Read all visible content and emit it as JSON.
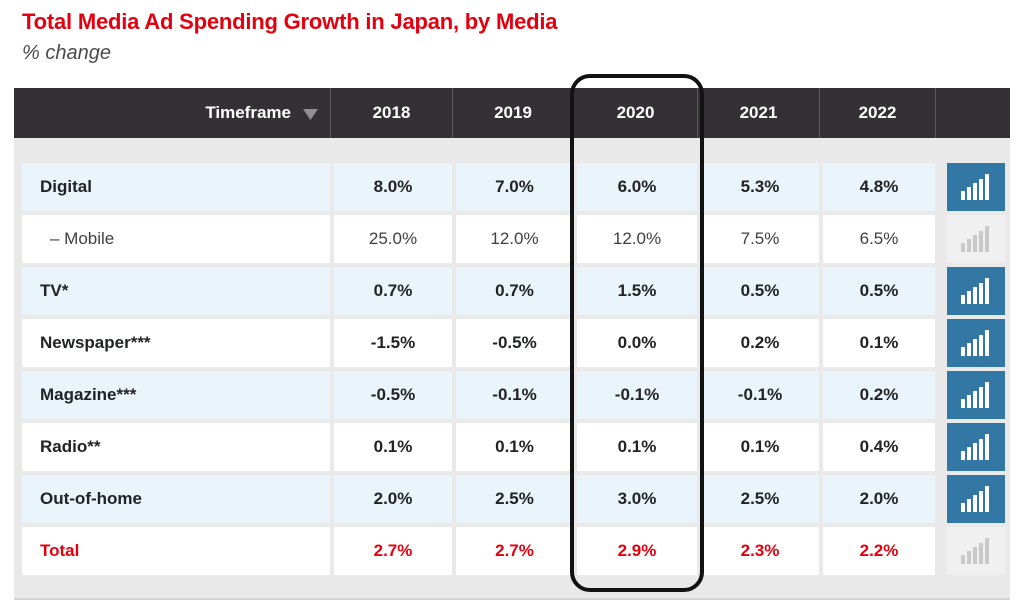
{
  "page": {
    "title": "Total Media Ad Spending Growth in Japan, by Media",
    "subtitle": "% change"
  },
  "colors": {
    "accent_red": "#e4000f",
    "header_background": "#333133",
    "shaded_row_blue": "#e9f4fb",
    "chart_button_blue": "#3378a4",
    "highlight_ring_black": "#121212"
  },
  "icons": {
    "sort_dropdown": "triangle-down",
    "row_chart_button": "bar-chart"
  },
  "table": {
    "header": {
      "label": "Timeframe",
      "years": [
        "2018",
        "2019",
        "2020",
        "2021",
        "2022"
      ]
    },
    "highlighted_year": "2020",
    "rows": [
      {
        "label": "Digital",
        "values": [
          "8.0%",
          "7.0%",
          "6.0%",
          "5.3%",
          "4.8%"
        ],
        "variant": "media",
        "shaded": true,
        "icon": "active"
      },
      {
        "label": "– Mobile",
        "values": [
          "25.0%",
          "12.0%",
          "12.0%",
          "7.5%",
          "6.5%"
        ],
        "variant": "sub",
        "shaded": false,
        "icon": "disabled"
      },
      {
        "label": "TV*",
        "values": [
          "0.7%",
          "0.7%",
          "1.5%",
          "0.5%",
          "0.5%"
        ],
        "variant": "media",
        "shaded": true,
        "icon": "active"
      },
      {
        "label": "Newspaper***",
        "values": [
          "-1.5%",
          "-0.5%",
          "0.0%",
          "0.2%",
          "0.1%"
        ],
        "variant": "media",
        "shaded": false,
        "icon": "active"
      },
      {
        "label": "Magazine***",
        "values": [
          "-0.5%",
          "-0.1%",
          "-0.1%",
          "-0.1%",
          "0.2%"
        ],
        "variant": "media",
        "shaded": true,
        "icon": "active"
      },
      {
        "label": "Radio**",
        "values": [
          "0.1%",
          "0.1%",
          "0.1%",
          "0.1%",
          "0.4%"
        ],
        "variant": "media",
        "shaded": false,
        "icon": "active"
      },
      {
        "label": "Out-of-home",
        "values": [
          "2.0%",
          "2.5%",
          "3.0%",
          "2.5%",
          "2.0%"
        ],
        "variant": "media",
        "shaded": true,
        "icon": "active"
      },
      {
        "label": "Total",
        "values": [
          "2.7%",
          "2.7%",
          "2.9%",
          "2.3%",
          "2.2%"
        ],
        "variant": "total",
        "shaded": false,
        "icon": "disabled"
      }
    ]
  },
  "chart_data": {
    "type": "table",
    "title": "Total Media Ad Spending Growth in Japan, by Media",
    "subtitle": "% change",
    "unit": "% change, year over year",
    "categories": [
      "2018",
      "2019",
      "2020",
      "2021",
      "2022"
    ],
    "series": [
      {
        "name": "Digital",
        "values": [
          8.0,
          7.0,
          6.0,
          5.3,
          4.8
        ]
      },
      {
        "name": "– Mobile",
        "values": [
          25.0,
          12.0,
          12.0,
          7.5,
          6.5
        ]
      },
      {
        "name": "TV*",
        "values": [
          0.7,
          0.7,
          1.5,
          0.5,
          0.5
        ]
      },
      {
        "name": "Newspaper***",
        "values": [
          -1.5,
          -0.5,
          0.0,
          0.2,
          0.1
        ]
      },
      {
        "name": "Magazine***",
        "values": [
          -0.5,
          -0.1,
          -0.1,
          -0.1,
          0.2
        ]
      },
      {
        "name": "Radio**",
        "values": [
          0.1,
          0.1,
          0.1,
          0.1,
          0.4
        ]
      },
      {
        "name": "Out-of-home",
        "values": [
          2.0,
          2.5,
          3.0,
          2.5,
          2.0
        ]
      },
      {
        "name": "Total",
        "values": [
          2.7,
          2.7,
          2.9,
          2.3,
          2.2
        ]
      }
    ],
    "annotations": [
      "2020 column circled for emphasis"
    ],
    "legend_position": "none",
    "grid": false
  }
}
